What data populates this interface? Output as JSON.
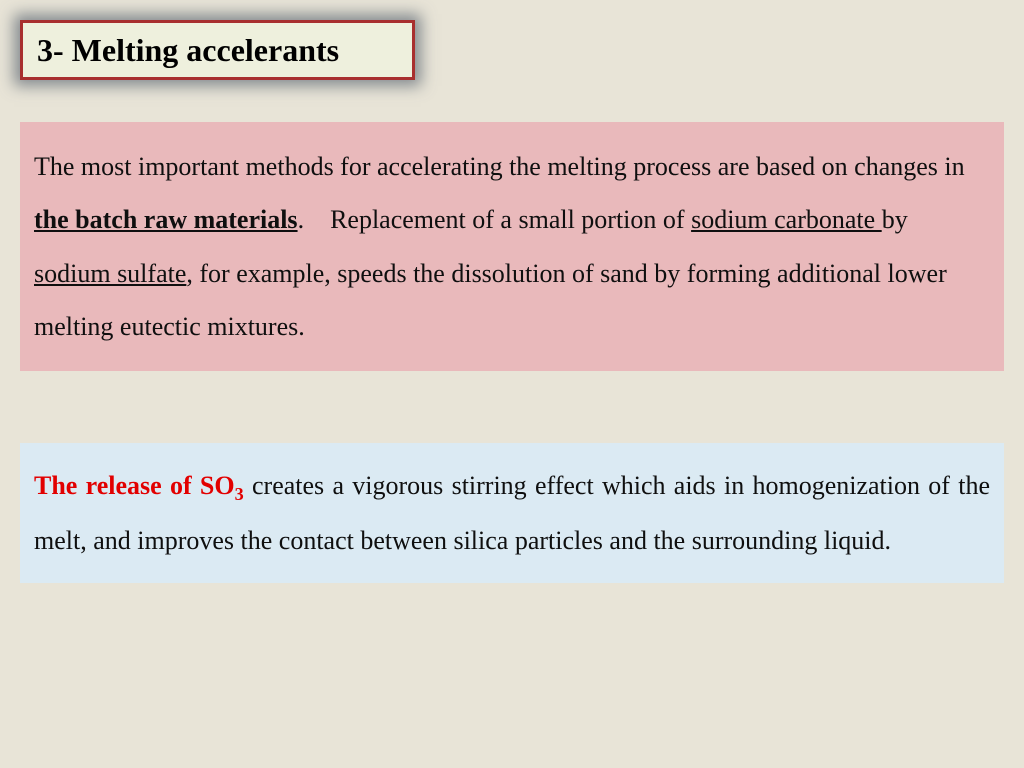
{
  "title": "3- Melting accelerants",
  "pink": {
    "t1": " The most important methods for accelerating the melting process are based on changes in ",
    "t2_bold_u": "the batch raw materials",
    "t3": ". Replacement of a small portion of ",
    "t4_u": "sodium carbonate ",
    "t5": "by ",
    "t6_u": "sodium sulfate",
    "t7": ", for example, speeds the dissolution of sand by forming additional lower melting eutectic mixtures."
  },
  "blue": {
    "t1_red": "The release of SO",
    "t1_sub": "3",
    "t2": " creates a vigorous stirring effect which aids in homogenization of the melt, and improves the contact between silica particles and the surrounding liquid."
  },
  "colors": {
    "page_bg": "#e8e4d7",
    "title_bg": "#eef0dd",
    "title_border": "#a82f2f",
    "pink_bg": "#e9b9bb",
    "blue_bg": "#dbeaf3",
    "red_text": "#e20000"
  }
}
